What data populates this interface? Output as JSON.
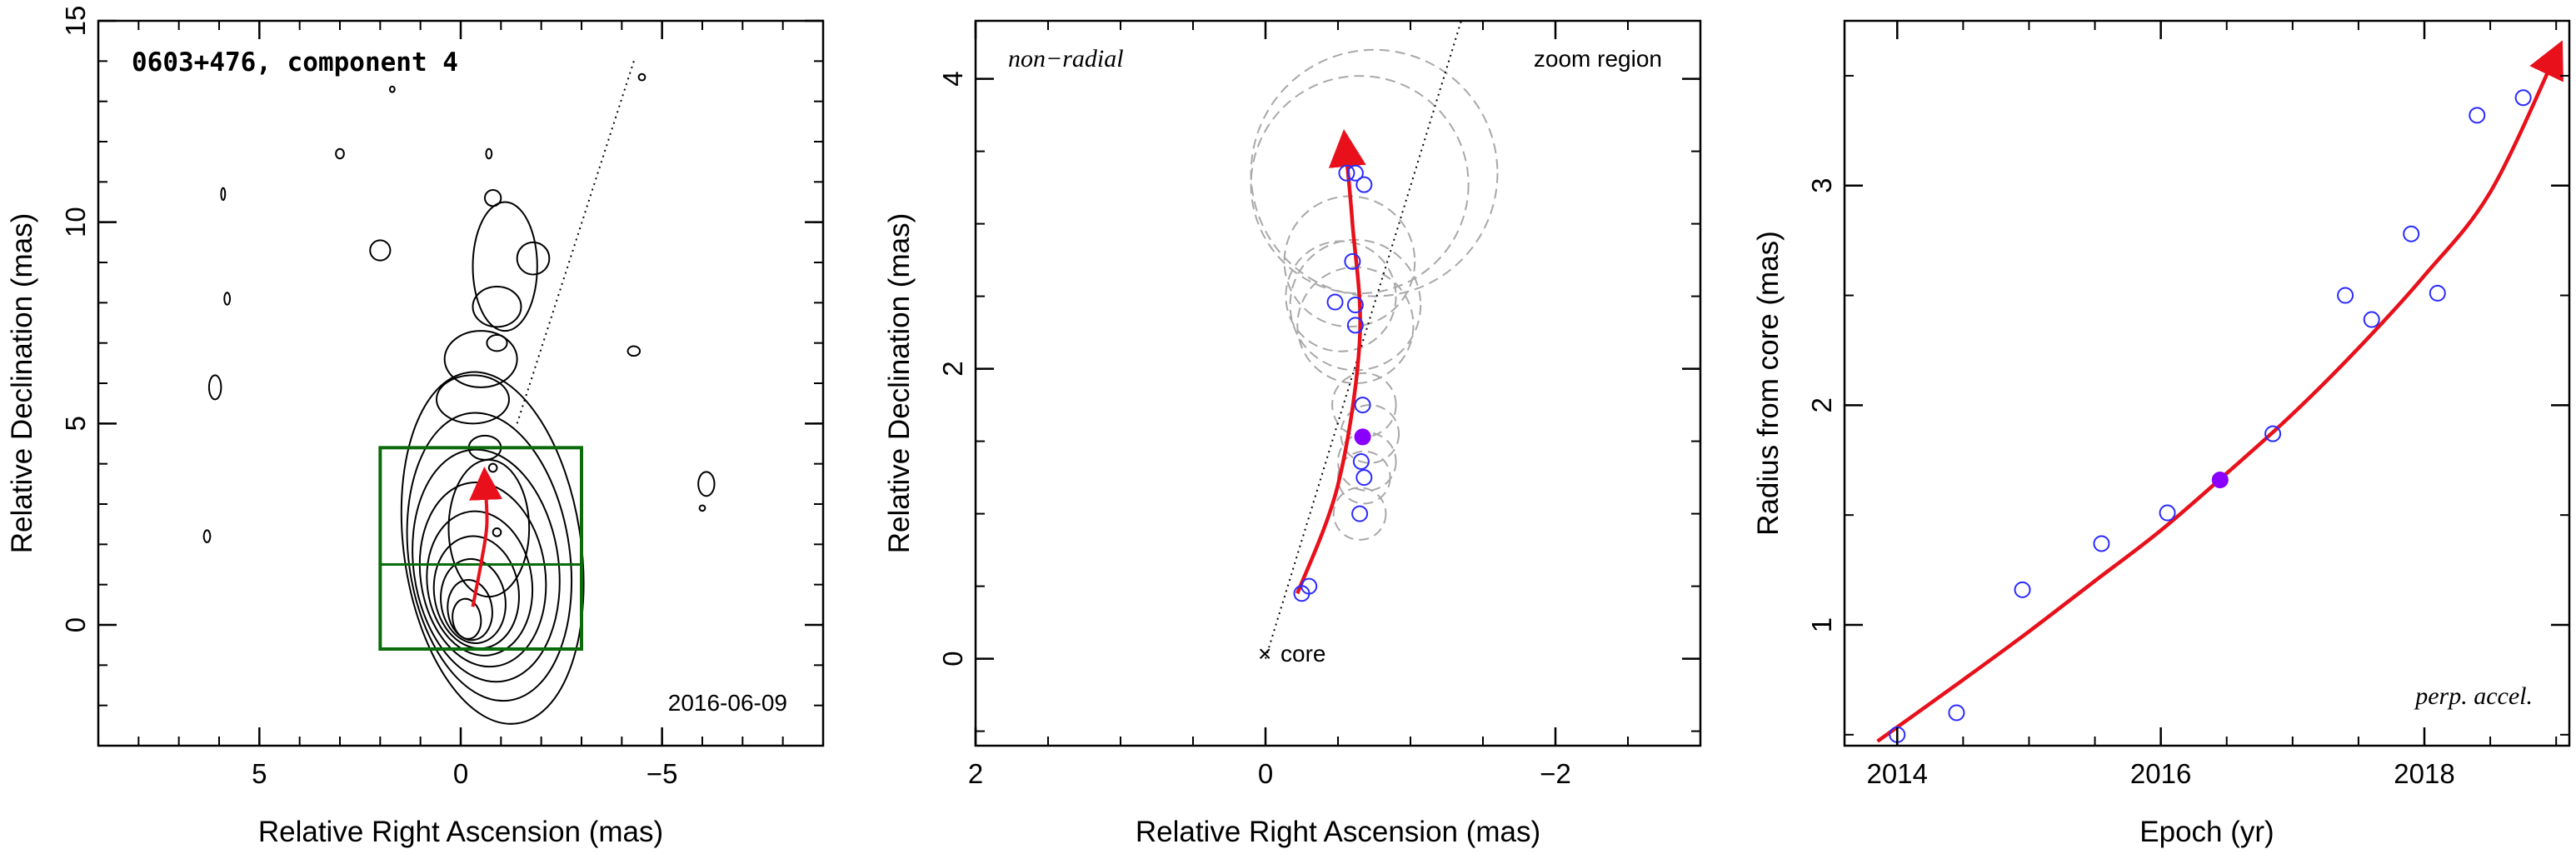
{
  "chart_data": [
    {
      "type": "contour",
      "title": "0603+476, component 4",
      "date": "2016-06-09",
      "xlabel": "Relative Right Ascension (mas)",
      "ylabel": "Relative Declination (mas)",
      "xlim": [
        9,
        -9
      ],
      "ylim": [
        -3,
        15
      ],
      "xticks": [
        5,
        0,
        -5
      ],
      "xtick_labels": [
        "5",
        "0",
        "−5"
      ],
      "yticks": [
        0,
        5,
        10,
        15
      ],
      "ytick_labels": [
        "0",
        "5",
        "10",
        "15"
      ],
      "zoom_box": {
        "x": [
          2,
          -3
        ],
        "y": [
          -0.6,
          4.4
        ],
        "split_y": 1.5
      },
      "trajectory_line": {
        "x": [
          -1.4,
          -4.3
        ],
        "y": [
          5,
          14
        ]
      },
      "arrow_path": {
        "x": [
          -0.3,
          -0.5,
          -0.65,
          -0.6
        ],
        "y": [
          0.45,
          1.5,
          2.5,
          3.6
        ]
      },
      "colors": {
        "box": "#0b6b0b",
        "arrow": "#e8101a",
        "contours": "#000000"
      }
    },
    {
      "type": "scatter",
      "xlabel": "Relative Right Ascension (mas)",
      "ylabel": "Relative Declination (mas)",
      "xlim": [
        2,
        -3
      ],
      "ylim": [
        -0.6,
        4.4
      ],
      "xticks": [
        2,
        0,
        -2
      ],
      "xtick_labels": [
        "2",
        "0",
        "−2"
      ],
      "yticks": [
        0,
        2,
        4
      ],
      "ytick_labels": [
        "0",
        "2",
        "4"
      ],
      "labels": {
        "top_left": "non−radial",
        "top_right": "zoom region",
        "core": "core"
      },
      "core": {
        "x": 0,
        "y": 0
      },
      "points": {
        "x": [
          -0.25,
          -0.3,
          -0.65,
          -0.68,
          -0.66,
          -0.67,
          -0.62,
          -0.62,
          -0.48,
          -0.6,
          -0.56,
          -0.68,
          -0.62
        ],
        "y": [
          0.45,
          0.5,
          1.0,
          1.25,
          1.36,
          1.75,
          2.3,
          2.44,
          2.46,
          2.74,
          3.35,
          3.27,
          3.35
        ]
      },
      "highlight": {
        "x": -0.67,
        "y": 1.53
      },
      "error_circles": {
        "x": [
          -0.65,
          -0.68,
          -0.7,
          -0.72,
          -0.68,
          -0.62,
          -0.62,
          -0.52,
          -0.58,
          -0.65,
          -0.75
        ],
        "y": [
          1.0,
          1.25,
          1.36,
          1.55,
          1.75,
          2.3,
          2.44,
          2.5,
          2.74,
          3.27,
          3.35
        ],
        "r": [
          0.18,
          0.18,
          0.2,
          0.2,
          0.22,
          0.4,
          0.45,
          0.38,
          0.45,
          0.75,
          0.85
        ]
      },
      "arrow_path": {
        "x": [
          -0.22,
          -0.5,
          -0.65,
          -0.6,
          -0.55
        ],
        "y": [
          0.45,
          1.2,
          2.2,
          3.0,
          3.55
        ]
      },
      "trajectory_line": {
        "x": [
          0,
          -1.35
        ],
        "y": [
          0,
          4.4
        ]
      },
      "colors": {
        "points": "#2b2bff",
        "highlight": "#8a00ff",
        "arrow": "#e8101a",
        "circles": "#a8a8a8"
      }
    },
    {
      "type": "scatter",
      "xlabel": "Epoch (yr)",
      "ylabel": "Radius from core (mas)",
      "xlim": [
        2013.6,
        2019.1
      ],
      "ylim": [
        0.45,
        3.75
      ],
      "xticks": [
        2014,
        2016,
        2018
      ],
      "xtick_labels": [
        "2014",
        "2016",
        "2018"
      ],
      "yticks": [
        1,
        2,
        3
      ],
      "ytick_labels": [
        "1",
        "2",
        "3"
      ],
      "annotation": "perp. accel.",
      "points": {
        "x": [
          2014.0,
          2014.45,
          2014.95,
          2015.55,
          2016.05,
          2016.85,
          2017.4,
          2017.6,
          2017.9,
          2018.1,
          2018.4,
          2018.75
        ],
        "y": [
          0.5,
          0.6,
          1.16,
          1.37,
          1.51,
          1.87,
          2.5,
          2.39,
          2.78,
          2.51,
          3.32,
          3.4
        ]
      },
      "highlight": {
        "x": 2016.45,
        "y": 1.66
      },
      "fit": {
        "x": [
          2013.85,
          2014.5,
          2015.0,
          2015.5,
          2016.0,
          2016.5,
          2017.0,
          2017.5,
          2018.0,
          2018.5,
          2019.0
        ],
        "y": [
          0.47,
          0.75,
          0.97,
          1.2,
          1.43,
          1.69,
          1.96,
          2.26,
          2.59,
          2.97,
          3.6
        ]
      },
      "colors": {
        "points": "#2b2bff",
        "highlight": "#8a00ff",
        "fit": "#e8101a"
      }
    }
  ]
}
